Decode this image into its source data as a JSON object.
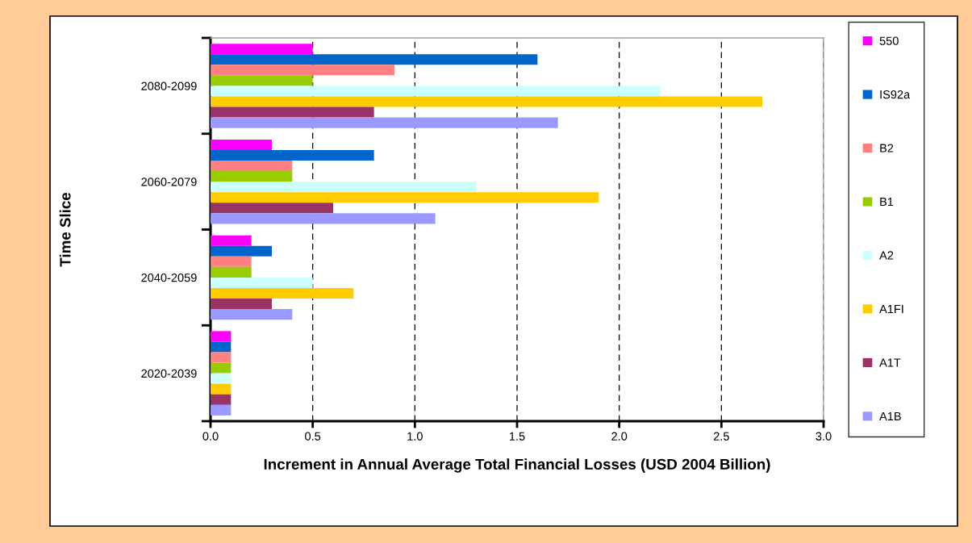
{
  "chart_data": {
    "type": "bar",
    "orientation": "horizontal",
    "xlabel": "Increment in Annual Average Total Financial Losses (USD 2004 Billion)",
    "ylabel": "Time Slice",
    "categories": [
      "2080-2099",
      "2060-2079",
      "2040-2059",
      "2020-2039"
    ],
    "series": [
      {
        "name": "550",
        "color": "#ff00ff",
        "values": [
          0.5,
          0.3,
          0.2,
          0.1
        ]
      },
      {
        "name": "IS92a",
        "color": "#0066cc",
        "values": [
          1.6,
          0.8,
          0.3,
          0.1
        ]
      },
      {
        "name": "B2",
        "color": "#ff8080",
        "values": [
          0.9,
          0.4,
          0.2,
          0.1
        ]
      },
      {
        "name": "B1",
        "color": "#99cc00",
        "values": [
          0.5,
          0.4,
          0.2,
          0.1
        ]
      },
      {
        "name": "A2",
        "color": "#ccffff",
        "values": [
          2.2,
          1.3,
          0.5,
          0.1
        ]
      },
      {
        "name": "A1FI",
        "color": "#ffcc00",
        "values": [
          2.7,
          1.9,
          0.7,
          0.1
        ]
      },
      {
        "name": "A1T",
        "color": "#993366",
        "values": [
          0.8,
          0.6,
          0.3,
          0.1
        ]
      },
      {
        "name": "A1B",
        "color": "#9999ff",
        "values": [
          1.7,
          1.1,
          0.4,
          0.1
        ]
      }
    ],
    "xlim": [
      0,
      3
    ],
    "xticks": [
      {
        "value": 0,
        "label": "0.0"
      },
      {
        "value": 0.5,
        "label": "0.5"
      },
      {
        "value": 1,
        "label": "1.0"
      },
      {
        "value": 1.5,
        "label": "1.5"
      },
      {
        "value": 2,
        "label": "2.0"
      },
      {
        "value": 2.5,
        "label": "2.5"
      },
      {
        "value": 3,
        "label": "3.0"
      }
    ],
    "grid": "x",
    "legend": "right"
  }
}
